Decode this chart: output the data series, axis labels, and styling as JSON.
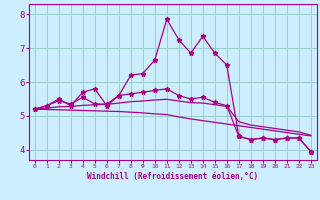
{
  "xlabel": "Windchill (Refroidissement éolien,°C)",
  "background_color": "#cceeff",
  "line_color": "#aa0088",
  "grid_color": "#99cccc",
  "xlim": [
    -0.5,
    23.5
  ],
  "ylim": [
    3.7,
    8.3
  ],
  "xticks": [
    0,
    1,
    2,
    3,
    4,
    5,
    6,
    7,
    8,
    9,
    10,
    11,
    12,
    13,
    14,
    15,
    16,
    17,
    18,
    19,
    20,
    21,
    22,
    23
  ],
  "yticks": [
    4,
    5,
    6,
    7,
    8
  ],
  "series": [
    [
      5.2,
      5.3,
      5.5,
      5.3,
      5.7,
      5.8,
      5.3,
      5.6,
      6.2,
      6.25,
      6.65,
      7.85,
      7.25,
      6.85,
      7.35,
      6.85,
      6.5,
      4.4,
      4.3,
      4.35,
      4.3,
      4.35,
      4.35,
      3.95
    ],
    [
      5.2,
      5.3,
      5.45,
      5.35,
      5.55,
      5.35,
      5.35,
      5.6,
      5.65,
      5.7,
      5.75,
      5.8,
      5.6,
      5.5,
      5.55,
      5.4,
      5.3,
      4.4,
      4.3,
      4.35,
      4.3,
      4.35,
      4.35,
      3.95
    ],
    [
      5.2,
      5.23,
      5.27,
      5.28,
      5.31,
      5.33,
      5.34,
      5.38,
      5.42,
      5.44,
      5.47,
      5.49,
      5.44,
      5.39,
      5.38,
      5.33,
      5.28,
      4.83,
      4.73,
      4.68,
      4.63,
      4.58,
      4.53,
      4.43
    ],
    [
      5.2,
      5.19,
      5.18,
      5.17,
      5.16,
      5.15,
      5.14,
      5.13,
      5.11,
      5.09,
      5.06,
      5.04,
      4.97,
      4.91,
      4.86,
      4.81,
      4.76,
      4.71,
      4.66,
      4.61,
      4.56,
      4.51,
      4.46,
      4.41
    ]
  ]
}
